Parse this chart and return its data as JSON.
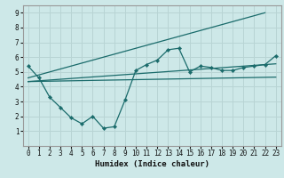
{
  "xlabel": "Humidex (Indice chaleur)",
  "bg_color": "#cde8e8",
  "grid_color": "#b8d4d4",
  "line_color": "#1a6b6b",
  "xlim": [
    -0.5,
    23.5
  ],
  "ylim": [
    0,
    9.5
  ],
  "xticks": [
    0,
    1,
    2,
    3,
    4,
    5,
    6,
    7,
    8,
    9,
    10,
    11,
    12,
    13,
    14,
    15,
    16,
    17,
    18,
    19,
    20,
    21,
    22,
    23
  ],
  "yticks": [
    1,
    2,
    3,
    4,
    5,
    6,
    7,
    8,
    9
  ],
  "main_x": [
    0,
    1,
    2,
    3,
    4,
    5,
    6,
    7,
    8,
    9,
    10,
    11,
    12,
    13,
    14,
    15,
    16,
    17,
    18,
    19,
    20,
    21,
    22,
    23
  ],
  "main_y": [
    5.4,
    4.6,
    3.3,
    2.6,
    1.9,
    1.5,
    2.0,
    1.2,
    1.3,
    3.1,
    5.1,
    5.5,
    5.8,
    6.5,
    6.6,
    5.0,
    5.4,
    5.3,
    5.1,
    5.1,
    5.3,
    5.4,
    5.5,
    6.1
  ],
  "line1_x": [
    0,
    22
  ],
  "line1_y": [
    4.6,
    9.0
  ],
  "line2_x": [
    0,
    23
  ],
  "line2_y": [
    4.35,
    5.55
  ],
  "line3_x": [
    0,
    23
  ],
  "line3_y": [
    4.35,
    4.65
  ]
}
